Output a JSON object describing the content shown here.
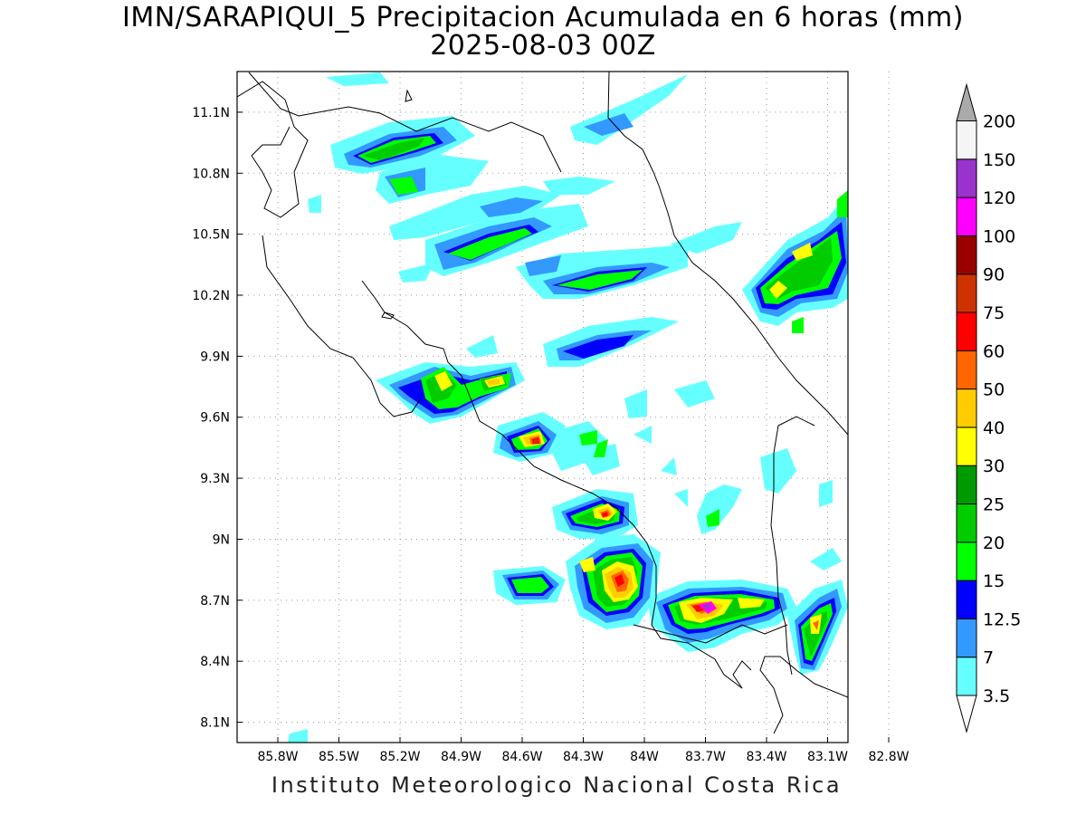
{
  "title": "IMN/SARAPIQUI_5 Precipitacion Acumulada en 6 horas (mm)",
  "subtitle": "2025-08-03 00Z",
  "credit": "Instituto Meteorologico Nacional Costa Rica",
  "map": {
    "lon_range": [
      -86.0,
      -83.0
    ],
    "lat_range": [
      8.0,
      11.3
    ],
    "lon_ticks": [
      {
        "value": -85.8,
        "label": "85.8W"
      },
      {
        "value": -85.5,
        "label": "85.5W"
      },
      {
        "value": -85.2,
        "label": "85.2W"
      },
      {
        "value": -84.9,
        "label": "84.9W"
      },
      {
        "value": -84.6,
        "label": "84.6W"
      },
      {
        "value": -84.3,
        "label": "84.3W"
      },
      {
        "value": -84.0,
        "label": "84W"
      },
      {
        "value": -83.7,
        "label": "83.7W"
      },
      {
        "value": -83.4,
        "label": "83.4W"
      },
      {
        "value": -83.1,
        "label": "83.1W"
      },
      {
        "value": -82.8,
        "label": "82.8W"
      }
    ],
    "lat_ticks": [
      {
        "value": 11.1,
        "label": "11.1N"
      },
      {
        "value": 10.8,
        "label": "10.8N"
      },
      {
        "value": 10.5,
        "label": "10.5N"
      },
      {
        "value": 10.2,
        "label": "10.2N"
      },
      {
        "value": 9.9,
        "label": "9.9N"
      },
      {
        "value": 9.6,
        "label": "9.6N"
      },
      {
        "value": 9.3,
        "label": "9.3N"
      },
      {
        "value": 9.0,
        "label": "9N"
      },
      {
        "value": 8.7,
        "label": "8.7N"
      },
      {
        "value": 8.4,
        "label": "8.4N"
      },
      {
        "value": 8.1,
        "label": "8.1N"
      }
    ]
  },
  "colorbar": {
    "bins": [
      {
        "label": "3.5",
        "color": "#66ffff"
      },
      {
        "label": "7",
        "color": "#3399ff"
      },
      {
        "label": "12.5",
        "color": "#0000ff"
      },
      {
        "label": "15",
        "color": "#00ff00"
      },
      {
        "label": "20",
        "color": "#00cc00"
      },
      {
        "label": "25",
        "color": "#009900"
      },
      {
        "label": "30",
        "color": "#ffff00"
      },
      {
        "label": "40",
        "color": "#ffcc00"
      },
      {
        "label": "50",
        "color": "#ff6600"
      },
      {
        "label": "60",
        "color": "#ff0000"
      },
      {
        "label": "75",
        "color": "#cc3300"
      },
      {
        "label": "90",
        "color": "#990000"
      },
      {
        "label": "100",
        "color": "#ff00ff"
      },
      {
        "label": "120",
        "color": "#9933cc"
      },
      {
        "label": "150",
        "color": "#f5f5f5"
      },
      {
        "label": "200",
        "color": "#aaaaaa"
      }
    ]
  }
}
